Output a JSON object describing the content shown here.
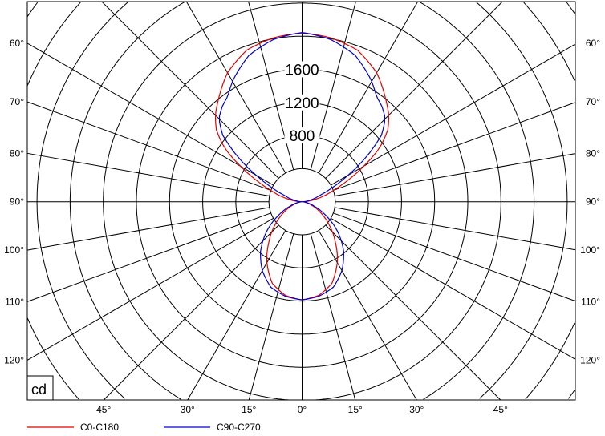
{
  "chart_data": {
    "type": "polar",
    "unit_label": "cd",
    "angle_unit": "degrees",
    "radial_axis": {
      "rings": [
        400,
        800,
        1200,
        1600,
        2000,
        2400,
        2800,
        3200,
        3600,
        4000
      ],
      "ring_labels": [
        "800",
        "1200",
        "1600"
      ],
      "ring_label_values": [
        800,
        1200,
        1600
      ]
    },
    "angle_lines": [
      0,
      15,
      30,
      45,
      60,
      70,
      80,
      90,
      100,
      110,
      120,
      135,
      150,
      165,
      180
    ],
    "bottom_tick_labels": [
      {
        "angle": 45,
        "side": "left",
        "text": "45°"
      },
      {
        "angle": 30,
        "side": "left",
        "text": "30°"
      },
      {
        "angle": 15,
        "side": "left",
        "text": "15°"
      },
      {
        "angle": 0,
        "side": "center",
        "text": "0°"
      },
      {
        "angle": 15,
        "side": "right",
        "text": "15°"
      },
      {
        "angle": 30,
        "side": "right",
        "text": "30°"
      },
      {
        "angle": 45,
        "side": "right",
        "text": "45°"
      }
    ],
    "side_tick_labels": [
      {
        "angle": 120,
        "text": "120°"
      },
      {
        "angle": 110,
        "text": "110°"
      },
      {
        "angle": 100,
        "text": "100°"
      },
      {
        "angle": 90,
        "text": "90°"
      },
      {
        "angle": 80,
        "text": "80°"
      },
      {
        "angle": 70,
        "text": "70°"
      },
      {
        "angle": 60,
        "text": "60°"
      }
    ],
    "grid": true,
    "legend_position": "bottom-left",
    "series": [
      {
        "name": "C0-C180",
        "color": "#e00000",
        "angles": [
          0,
          10,
          20,
          30,
          40,
          50,
          60,
          70,
          80,
          90,
          100,
          110,
          115,
          120,
          125,
          130,
          135,
          140,
          150,
          160,
          170,
          180
        ],
        "values": [
          1185,
          1150,
          1050,
          850,
          620,
          420,
          250,
          120,
          40,
          0,
          150,
          400,
          600,
          860,
          1150,
          1350,
          1480,
          1580,
          1800,
          1950,
          2010,
          2040
        ]
      },
      {
        "name": "C90-C270",
        "color": "#0000d0",
        "angles": [
          0,
          10,
          20,
          30,
          40,
          50,
          60,
          70,
          80,
          90,
          100,
          110,
          115,
          120,
          125,
          130,
          135,
          140,
          145,
          150,
          160,
          170,
          180
        ],
        "values": [
          1185,
          1160,
          1100,
          960,
          780,
          560,
          330,
          150,
          50,
          0,
          80,
          230,
          400,
          640,
          950,
          1250,
          1420,
          1500,
          1560,
          1680,
          1880,
          1990,
          2045
        ]
      }
    ]
  }
}
